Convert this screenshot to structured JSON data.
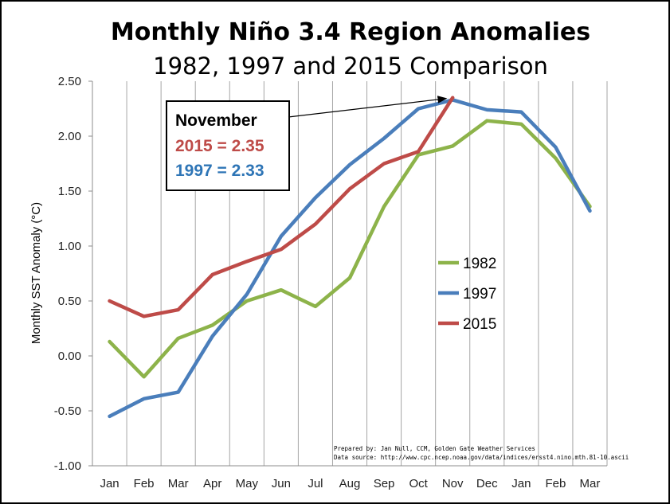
{
  "chart_data": {
    "type": "line",
    "title": "Monthly Niño 3.4 Region Anomalies",
    "subtitle": "1982, 1997 and 2015 Comparison",
    "ylabel": "Monthly SST Anomaly (°C)",
    "xlabel": "",
    "ylim": [
      -1.0,
      2.5
    ],
    "y_ticks": [
      2.5,
      2.0,
      1.5,
      1.0,
      0.5,
      0.0,
      -0.5,
      -1.0
    ],
    "y_tick_labels": [
      "2.50",
      "2.00",
      "1.50",
      "1.00",
      "0.50",
      "0.00",
      "-0.50",
      "-1.00"
    ],
    "categories": [
      "Jan",
      "Feb",
      "Mar",
      "Apr",
      "May",
      "Jun",
      "Jul",
      "Aug",
      "Sep",
      "Oct",
      "Nov",
      "Dec",
      "Jan",
      "Feb",
      "Mar"
    ],
    "grid": "vertical",
    "legend_position": "right",
    "series": [
      {
        "name": "1982",
        "color": "#8db34a",
        "values": [
          0.13,
          -0.19,
          0.16,
          0.28,
          0.5,
          0.6,
          0.45,
          0.71,
          1.36,
          1.83,
          1.91,
          2.14,
          2.11,
          1.8,
          1.36
        ]
      },
      {
        "name": "1997",
        "color": "#4a7ebb",
        "values": [
          -0.55,
          -0.39,
          -0.33,
          0.18,
          0.56,
          1.09,
          1.44,
          1.74,
          1.98,
          2.25,
          2.33,
          2.24,
          2.22,
          1.9,
          1.32
        ]
      },
      {
        "name": "2015",
        "color": "#be4b48",
        "values": [
          0.5,
          0.36,
          0.42,
          0.74,
          0.86,
          0.97,
          1.2,
          1.52,
          1.75,
          1.86,
          2.35,
          null,
          null,
          null,
          null
        ]
      }
    ],
    "annotation": {
      "line1": "November",
      "line2": "2015 = 2.35",
      "line3": "1997 = 2.33",
      "line2_color": "#be4b48",
      "line3_color": "#2e75b6",
      "points_to_category_index": 10,
      "points_to_value": 2.35
    },
    "credits": {
      "line1": "Prepared by: Jan Null, CCM, Golden Gate Weather Services",
      "line2": "Data source: http://www.cpc.ncep.noaa.gov/data/indices/ersst4.nino.mth.81-10.ascii"
    }
  }
}
